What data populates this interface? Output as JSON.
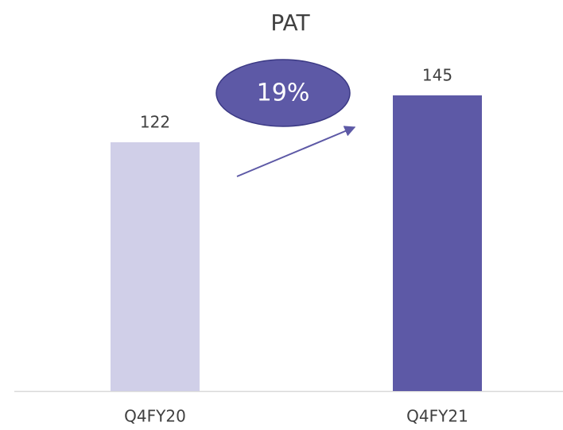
{
  "chart_data": {
    "type": "bar",
    "title": "PAT",
    "categories": [
      "Q4FY20",
      "Q4FY21"
    ],
    "values": [
      122,
      145
    ],
    "colors": [
      "#d0cfe8",
      "#5d59a6"
    ],
    "annotation": "19%"
  }
}
